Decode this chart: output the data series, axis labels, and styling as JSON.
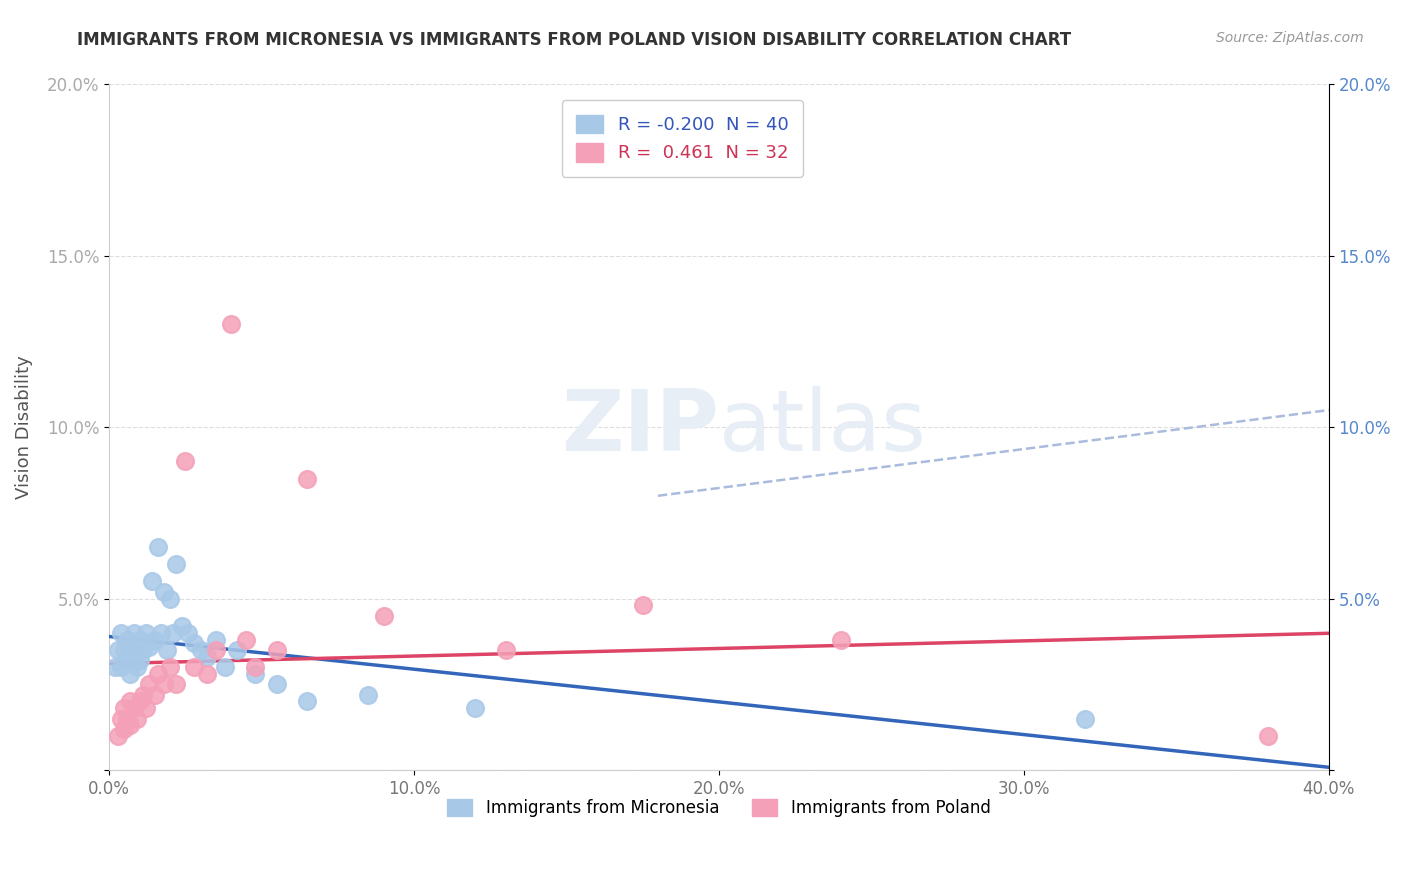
{
  "title": "IMMIGRANTS FROM MICRONESIA VS IMMIGRANTS FROM POLAND VISION DISABILITY CORRELATION CHART",
  "source": "Source: ZipAtlas.com",
  "ylabel": "Vision Disability",
  "xlim": [
    0.0,
    0.4
  ],
  "ylim": [
    0.0,
    0.2
  ],
  "xticks": [
    0.0,
    0.1,
    0.2,
    0.3,
    0.4
  ],
  "yticks": [
    0.0,
    0.05,
    0.1,
    0.15,
    0.2
  ],
  "xticklabels": [
    "0.0%",
    "10.0%",
    "20.0%",
    "30.0%",
    "40.0%"
  ],
  "yticklabels": [
    "",
    "5.0%",
    "10.0%",
    "15.0%",
    "20.0%"
  ],
  "legend_labels": [
    "Immigrants from Micronesia",
    "Immigrants from Poland"
  ],
  "micronesia_R": "-0.200",
  "micronesia_N": "40",
  "poland_R": "0.461",
  "poland_N": "32",
  "micronesia_color": "#a8c8e8",
  "poland_color": "#f4a0b8",
  "micronesia_line_color": "#3366bb",
  "poland_line_color": "#dd4466",
  "dashed_line_color": "#aabbdd",
  "watermark_color": "#e8eef5",
  "micronesia_scatter_x": [
    0.002,
    0.003,
    0.004,
    0.004,
    0.005,
    0.006,
    0.006,
    0.007,
    0.007,
    0.008,
    0.008,
    0.009,
    0.01,
    0.01,
    0.011,
    0.012,
    0.013,
    0.014,
    0.015,
    0.016,
    0.017,
    0.018,
    0.019,
    0.02,
    0.021,
    0.022,
    0.024,
    0.026,
    0.028,
    0.03,
    0.032,
    0.035,
    0.038,
    0.042,
    0.048,
    0.055,
    0.065,
    0.085,
    0.12,
    0.32
  ],
  "micronesia_scatter_y": [
    0.03,
    0.035,
    0.03,
    0.04,
    0.035,
    0.032,
    0.038,
    0.028,
    0.035,
    0.033,
    0.04,
    0.03,
    0.032,
    0.038,
    0.035,
    0.04,
    0.036,
    0.055,
    0.038,
    0.065,
    0.04,
    0.052,
    0.035,
    0.05,
    0.04,
    0.06,
    0.042,
    0.04,
    0.037,
    0.035,
    0.033,
    0.038,
    0.03,
    0.035,
    0.028,
    0.025,
    0.02,
    0.022,
    0.018,
    0.015
  ],
  "poland_scatter_x": [
    0.003,
    0.004,
    0.005,
    0.005,
    0.006,
    0.007,
    0.007,
    0.008,
    0.009,
    0.01,
    0.011,
    0.012,
    0.013,
    0.015,
    0.016,
    0.018,
    0.02,
    0.022,
    0.025,
    0.028,
    0.032,
    0.035,
    0.04,
    0.045,
    0.048,
    0.055,
    0.065,
    0.09,
    0.13,
    0.175,
    0.24,
    0.38
  ],
  "poland_scatter_y": [
    0.01,
    0.015,
    0.012,
    0.018,
    0.015,
    0.013,
    0.02,
    0.018,
    0.015,
    0.02,
    0.022,
    0.018,
    0.025,
    0.022,
    0.028,
    0.025,
    0.03,
    0.025,
    0.09,
    0.03,
    0.028,
    0.035,
    0.13,
    0.038,
    0.03,
    0.035,
    0.085,
    0.045,
    0.035,
    0.048,
    0.038,
    0.01
  ]
}
